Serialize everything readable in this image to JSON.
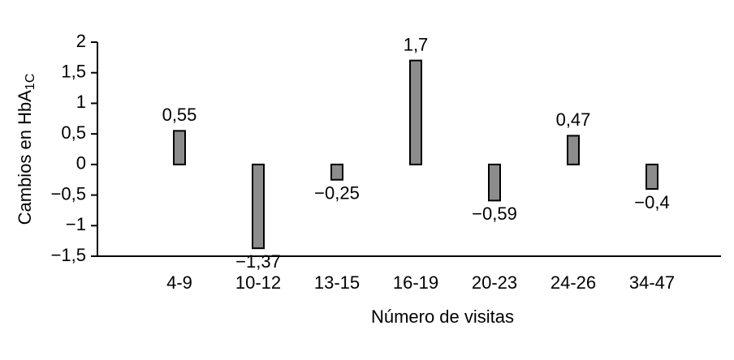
{
  "chart_data": {
    "type": "bar",
    "xlabel": "Número de visitas",
    "ylabel": "Cambios en HbA",
    "ylabel_sub": "1C",
    "categories": [
      "4-9",
      "10-12",
      "13-15",
      "16-19",
      "20-23",
      "24-26",
      "34-47"
    ],
    "values": [
      0.55,
      -1.37,
      -0.25,
      1.7,
      -0.59,
      0.47,
      -0.4
    ],
    "value_labels": [
      "0,55",
      "−1,37",
      "−0,25",
      "1,7",
      "−0,59",
      "0,47",
      "−0,4"
    ],
    "color": "#8c8c8c",
    "ylim": [
      -1.5,
      2
    ],
    "yticks": [
      {
        "value": -1.5,
        "label": "−1,5"
      },
      {
        "value": -1,
        "label": "−1"
      },
      {
        "value": -0.5,
        "label": "−0,5"
      },
      0,
      {
        "value": 0.5,
        "label": "0,5"
      },
      1,
      {
        "value": 1.5,
        "label": "1,5"
      },
      2
    ]
  }
}
